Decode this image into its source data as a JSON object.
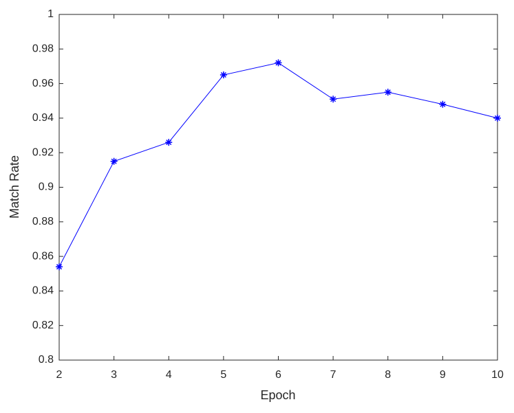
{
  "chart_data": {
    "type": "line",
    "x_label": "Epoch",
    "y_label": "Match Rate",
    "x": [
      2,
      3,
      4,
      5,
      6,
      7,
      8,
      9,
      10
    ],
    "series": [
      {
        "color": "#0000ff",
        "values": [
          0.854,
          0.915,
          0.926,
          0.965,
          0.972,
          0.951,
          0.955,
          0.948,
          0.94
        ]
      }
    ],
    "xlim": [
      2,
      10
    ],
    "xticks": [
      2,
      3,
      4,
      5,
      6,
      7,
      8,
      9,
      10
    ],
    "ylim": [
      0.8,
      1
    ],
    "yticks": [
      0.8,
      0.82,
      0.84,
      0.86,
      0.88,
      0.9,
      0.92,
      0.94,
      0.96,
      0.98,
      1
    ],
    "grid": false
  }
}
